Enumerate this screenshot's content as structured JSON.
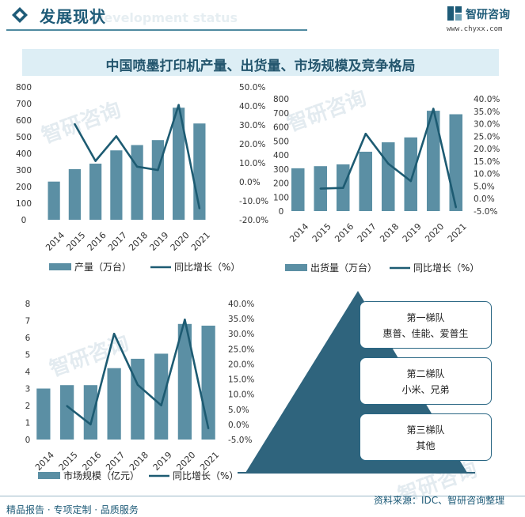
{
  "header": {
    "title": "发展现状",
    "ghost_text": "Development status",
    "logo_name": "智研咨询",
    "logo_url": "www.chyxx.com"
  },
  "banner": {
    "title": "中国喷墨打印机产量、出货量、市场规模及竞争格局"
  },
  "watermark": "智研咨询",
  "colors": {
    "bar": "#5b8fa4",
    "line": "#1d5b72",
    "tier_bg": "#2f647d",
    "border": "#2a6784"
  },
  "chart_data": [
    {
      "type": "bar+line",
      "categories": [
        "2014",
        "2015",
        "2016",
        "2017",
        "2018",
        "2019",
        "2020",
        "2021"
      ],
      "series": [
        {
          "name": "产量（万台）",
          "type": "bar",
          "axis": "left",
          "values": [
            230,
            305,
            338,
            418,
            450,
            480,
            675,
            580
          ]
        },
        {
          "name": "同比增长（%）",
          "type": "line",
          "axis": "right",
          "values": [
            null,
            30.4,
            11.0,
            24.0,
            8.0,
            6.2,
            40.5,
            -14.0
          ]
        }
      ],
      "ylim_left": [
        0,
        800
      ],
      "yticks_left": [
        "0",
        "100",
        "200",
        "300",
        "400",
        "500",
        "600",
        "700",
        "800"
      ],
      "ylim_right": [
        -20,
        50
      ],
      "yticks_right": [
        "-20.0%",
        "-10.0%",
        "0.0%",
        "10.0%",
        "20.0%",
        "30.0%",
        "40.0%",
        "50.0%"
      ],
      "legend_position": "bottom"
    },
    {
      "type": "bar+line",
      "categories": [
        "2014",
        "2015",
        "2016",
        "2017",
        "2018",
        "2019",
        "2020",
        "2021"
      ],
      "series": [
        {
          "name": "出货量（万台）",
          "type": "bar",
          "axis": "left",
          "values": [
            305,
            320,
            333,
            423,
            490,
            525,
            715,
            690
          ]
        },
        {
          "name": "同比增长（%）",
          "type": "line",
          "axis": "right",
          "values": [
            null,
            4.0,
            4.3,
            26.0,
            14.0,
            7.0,
            36.0,
            -3.5
          ]
        }
      ],
      "ylim_left": [
        0,
        800
      ],
      "yticks_left": [
        "0",
        "100",
        "200",
        "300",
        "400",
        "500",
        "600",
        "700",
        "800"
      ],
      "ylim_right": [
        -5,
        40
      ],
      "yticks_right": [
        "-5.0%",
        "0.0%",
        "5.0%",
        "10.0%",
        "15.0%",
        "20.0%",
        "25.0%",
        "30.0%",
        "35.0%",
        "40.0%"
      ],
      "legend_position": "bottom"
    },
    {
      "type": "bar+line",
      "categories": [
        "2014",
        "2015",
        "2016",
        "2017",
        "2018",
        "2019",
        "2020",
        "2021"
      ],
      "series": [
        {
          "name": "市场规模（亿元）",
          "type": "bar",
          "axis": "left",
          "values": [
            3.0,
            3.2,
            3.2,
            4.2,
            4.75,
            5.05,
            6.8,
            6.7
          ]
        },
        {
          "name": "同比增长（%）",
          "type": "line",
          "axis": "right",
          "values": [
            null,
            6.1,
            0.0,
            30.0,
            13.1,
            6.3,
            34.7,
            -1.3
          ]
        }
      ],
      "ylim_left": [
        0,
        8
      ],
      "yticks_left": [
        "0",
        "1",
        "2",
        "3",
        "4",
        "5",
        "6",
        "7",
        "8"
      ],
      "ylim_right": [
        -5,
        40
      ],
      "yticks_right": [
        "-5.0%",
        "0.0%",
        "5.0%",
        "10.0%",
        "15.0%",
        "20.0%",
        "25.0%",
        "30.0%",
        "35.0%",
        "40.0%"
      ],
      "legend_position": "bottom"
    }
  ],
  "tiers": [
    {
      "title": "第一梯队",
      "members": "惠普、佳能、爱普生"
    },
    {
      "title": "第二梯队",
      "members": "小米、兄弟"
    },
    {
      "title": "第三梯队",
      "members": "其他"
    }
  ],
  "footer": {
    "left": "精品报告 · 专项定制 · 品质服务",
    "source": "资料来源：IDC、智研咨询整理"
  }
}
